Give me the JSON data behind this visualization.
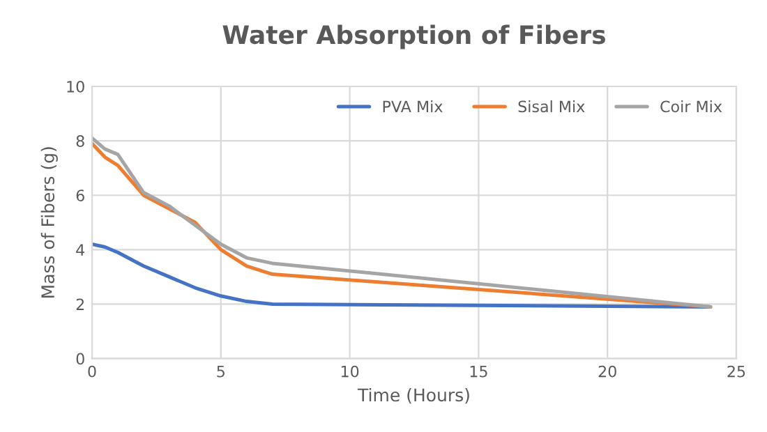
{
  "chart_data": {
    "type": "line",
    "title": "Water Absorption of Fibers",
    "xlabel": "Time (Hours)",
    "ylabel": "Mass of Fibers (g)",
    "x": [
      0,
      0.5,
      1,
      2,
      3,
      4,
      5,
      6,
      7,
      24
    ],
    "series": [
      {
        "name": "PVA Mix",
        "color": "#4472c4",
        "values": [
          4.2,
          4.1,
          3.9,
          3.4,
          3.0,
          2.6,
          2.3,
          2.1,
          2.0,
          1.9
        ]
      },
      {
        "name": "Sisal Mix",
        "color": "#ed7d31",
        "values": [
          7.9,
          7.4,
          7.1,
          6.0,
          5.5,
          5.0,
          4.0,
          3.4,
          3.1,
          1.9
        ]
      },
      {
        "name": "Coir Mix",
        "color": "#a5a5a5",
        "values": [
          8.1,
          7.7,
          7.5,
          6.1,
          5.6,
          4.9,
          4.2,
          3.7,
          3.5,
          1.9
        ]
      }
    ],
    "xlim": [
      0,
      25
    ],
    "xticks": [
      0,
      5,
      10,
      15,
      20,
      25
    ],
    "ylim": [
      0,
      10
    ],
    "yticks": [
      0,
      2,
      4,
      6,
      8,
      10
    ],
    "grid": true,
    "legend": "top right"
  }
}
